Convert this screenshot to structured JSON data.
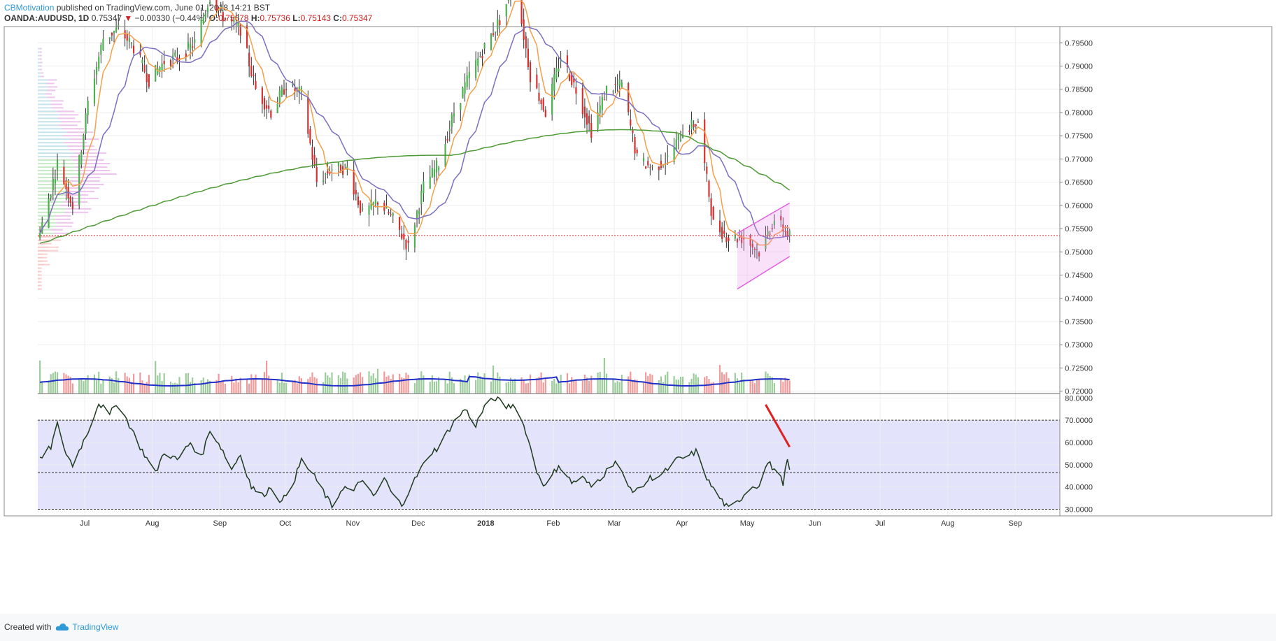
{
  "header": {
    "author": "CBMotivation",
    "published": "published on TradingView.com, June 01, 2018 14:21 BST",
    "symbol": "OANDA:AUDUSD, 1D",
    "last": "0.75347",
    "change": "−0.00330 (−0.44%)",
    "o_label": "O:",
    "o": "0.75678",
    "h_label": "H:",
    "h": "0.75736",
    "l_label": "L:",
    "l": "0.75143",
    "c_label": "C:",
    "c": "0.75347"
  },
  "footer": {
    "created": "Created with",
    "brand": "TradingView"
  },
  "colors": {
    "up": "#4caf50",
    "down": "#d32f2f",
    "ma_fast": "#f5a04a",
    "ma_mid": "#7b6fc0",
    "ma_slow": "#4e9a35",
    "rsi_line": "#1e3a1e",
    "rsi_band": "#e3e3fb",
    "channel": "#e060e0",
    "volume_ma": "#1f2fc8",
    "support": "#e02020"
  },
  "chart_data": {
    "type": "candlestick",
    "symbol": "OANDA:AUDUSD",
    "timeframe": "1D",
    "price_ticks": [
      "0.79500",
      "0.79000",
      "0.78500",
      "0.78000",
      "0.77500",
      "0.77000",
      "0.76500",
      "0.76000",
      "0.75500",
      "0.75000",
      "0.74500",
      "0.74000",
      "0.73500",
      "0.73000",
      "0.72500",
      "0.72000"
    ],
    "ylim": [
      0.7195,
      0.7985
    ],
    "x_ticks": [
      "Jul",
      "Aug",
      "Sep",
      "Oct",
      "Nov",
      "Dec",
      "2018",
      "Feb",
      "Mar",
      "Apr",
      "May",
      "Jun",
      "Jul",
      "Aug",
      "Sep"
    ],
    "close_keypoints": [
      [
        "2017-06-22",
        0.754
      ],
      [
        "2017-06-30",
        0.769
      ],
      [
        "2017-07-07",
        0.76
      ],
      [
        "2017-07-14",
        0.782
      ],
      [
        "2017-07-21",
        0.796
      ],
      [
        "2017-07-28",
        0.798
      ],
      [
        "2017-08-04",
        0.794
      ],
      [
        "2017-08-11",
        0.787
      ],
      [
        "2017-08-18",
        0.791
      ],
      [
        "2017-08-25",
        0.792
      ],
      [
        "2017-09-01",
        0.795
      ],
      [
        "2017-09-08",
        0.805
      ],
      [
        "2017-09-15",
        0.8
      ],
      [
        "2017-09-22",
        0.798
      ],
      [
        "2017-09-29",
        0.785
      ],
      [
        "2017-10-06",
        0.78
      ],
      [
        "2017-10-13",
        0.786
      ],
      [
        "2017-10-20",
        0.784
      ],
      [
        "2017-10-27",
        0.765
      ],
      [
        "2017-11-03",
        0.768
      ],
      [
        "2017-11-10",
        0.768
      ],
      [
        "2017-11-17",
        0.758
      ],
      [
        "2017-11-24",
        0.761
      ],
      [
        "2017-12-01",
        0.757
      ],
      [
        "2017-12-08",
        0.751
      ],
      [
        "2017-12-15",
        0.764
      ],
      [
        "2017-12-22",
        0.769
      ],
      [
        "2017-12-29",
        0.78
      ],
      [
        "2018-01-05",
        0.788
      ],
      [
        "2018-01-12",
        0.794
      ],
      [
        "2018-01-19",
        0.8
      ],
      [
        "2018-01-26",
        0.808
      ],
      [
        "2018-02-02",
        0.788
      ],
      [
        "2018-02-09",
        0.78
      ],
      [
        "2018-02-16",
        0.792
      ],
      [
        "2018-02-23",
        0.785
      ],
      [
        "2018-03-02",
        0.776
      ],
      [
        "2018-03-09",
        0.785
      ],
      [
        "2018-03-16",
        0.786
      ],
      [
        "2018-03-23",
        0.77
      ],
      [
        "2018-03-30",
        0.768
      ],
      [
        "2018-04-06",
        0.77
      ],
      [
        "2018-04-13",
        0.776
      ],
      [
        "2018-04-20",
        0.778
      ],
      [
        "2018-04-27",
        0.756
      ],
      [
        "2018-05-04",
        0.753
      ],
      [
        "2018-05-11",
        0.753
      ],
      [
        "2018-05-18",
        0.75
      ],
      [
        "2018-05-25",
        0.757
      ],
      [
        "2018-06-01",
        0.7535
      ]
    ],
    "horizontal_line": 0.7535,
    "channel": {
      "lower": [
        [
          "2018-05-08",
          0.742
        ],
        [
          "2018-06-01",
          0.749
        ]
      ],
      "upper": [
        [
          "2018-05-08",
          0.754
        ],
        [
          "2018-06-01",
          0.7605
        ]
      ]
    },
    "volume_overlay_ma": "yes",
    "moving_averages": [
      "fast",
      "mid",
      "slow"
    ],
    "rsi": {
      "ticks": [
        "80.0000",
        "70.0000",
        "60.0000",
        "50.0000",
        "40.0000",
        "30.0000"
      ],
      "ylim": [
        27,
        82
      ],
      "levels": [
        70,
        46.5,
        30
      ],
      "keypoints": [
        [
          "2017-06-22",
          52
        ],
        [
          "2017-06-27",
          58
        ],
        [
          "2017-06-30",
          68
        ],
        [
          "2017-07-04",
          55
        ],
        [
          "2017-07-07",
          50
        ],
        [
          "2017-07-14",
          65
        ],
        [
          "2017-07-19",
          78
        ],
        [
          "2017-07-24",
          72
        ],
        [
          "2017-07-27",
          78
        ],
        [
          "2017-08-01",
          70
        ],
        [
          "2017-08-07",
          58
        ],
        [
          "2017-08-14",
          46
        ],
        [
          "2017-08-18",
          56
        ],
        [
          "2017-08-24",
          52
        ],
        [
          "2017-08-30",
          60
        ],
        [
          "2017-09-04",
          53
        ],
        [
          "2017-09-08",
          66
        ],
        [
          "2017-09-13",
          58
        ],
        [
          "2017-09-18",
          48
        ],
        [
          "2017-09-22",
          55
        ],
        [
          "2017-09-27",
          40
        ],
        [
          "2017-10-02",
          36
        ],
        [
          "2017-10-06",
          40
        ],
        [
          "2017-10-11",
          33
        ],
        [
          "2017-10-17",
          44
        ],
        [
          "2017-10-20",
          52
        ],
        [
          "2017-10-25",
          46
        ],
        [
          "2017-10-30",
          38
        ],
        [
          "2017-11-03",
          31
        ],
        [
          "2017-11-08",
          40
        ],
        [
          "2017-11-13",
          38
        ],
        [
          "2017-11-17",
          44
        ],
        [
          "2017-11-22",
          35
        ],
        [
          "2017-11-27",
          44
        ],
        [
          "2017-12-01",
          36
        ],
        [
          "2017-12-05",
          32
        ],
        [
          "2017-12-12",
          45
        ],
        [
          "2017-12-18",
          55
        ],
        [
          "2017-12-22",
          58
        ],
        [
          "2017-12-28",
          68
        ],
        [
          "2018-01-03",
          75
        ],
        [
          "2018-01-08",
          68
        ],
        [
          "2018-01-12",
          76
        ],
        [
          "2018-01-17",
          80
        ],
        [
          "2018-01-22",
          76
        ],
        [
          "2018-01-26",
          77
        ],
        [
          "2018-01-31",
          65
        ],
        [
          "2018-02-05",
          47
        ],
        [
          "2018-02-09",
          40
        ],
        [
          "2018-02-15",
          50
        ],
        [
          "2018-02-21",
          42
        ],
        [
          "2018-02-26",
          44
        ],
        [
          "2018-03-02",
          40
        ],
        [
          "2018-03-08",
          46
        ],
        [
          "2018-03-13",
          52
        ],
        [
          "2018-03-19",
          40
        ],
        [
          "2018-03-23",
          38
        ],
        [
          "2018-03-29",
          44
        ],
        [
          "2018-04-04",
          46
        ],
        [
          "2018-04-10",
          52
        ],
        [
          "2018-04-16",
          54
        ],
        [
          "2018-04-19",
          56
        ],
        [
          "2018-04-25",
          42
        ],
        [
          "2018-04-30",
          35
        ],
        [
          "2018-05-04",
          30
        ],
        [
          "2018-05-08",
          33
        ],
        [
          "2018-05-14",
          40
        ],
        [
          "2018-05-18",
          41
        ],
        [
          "2018-05-22",
          51
        ],
        [
          "2018-05-25",
          48
        ],
        [
          "2018-05-29",
          42
        ],
        [
          "2018-05-31",
          52
        ],
        [
          "2018-06-01",
          47
        ]
      ],
      "annotation_line": [
        [
          "2018-05-21",
          77
        ],
        [
          "2018-06-01",
          58
        ]
      ]
    }
  }
}
